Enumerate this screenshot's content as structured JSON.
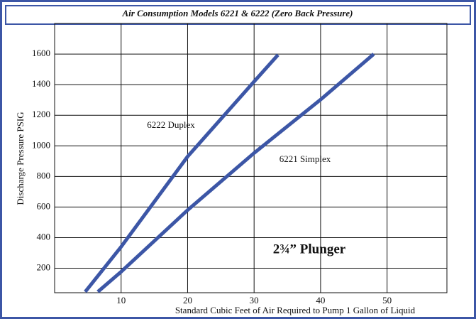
{
  "chart_data": {
    "type": "line",
    "title": "Air Consumption Models 6221 & 6222 (Zero Back Pressure)",
    "x_label": "Standard Cubic Feet of Air Required to Pump 1 Gallon of Liquid",
    "y_label": "Discharge Pressure PSIG",
    "annotations": [
      "2¾” Plunger"
    ],
    "xlim": [
      0,
      59
    ],
    "xticks": [
      10,
      20,
      30,
      40,
      50
    ],
    "ylim": [
      40,
      1800
    ],
    "yticks": [
      200,
      400,
      600,
      800,
      1000,
      1200,
      1400,
      1600
    ],
    "grid": true,
    "series": [
      {
        "name": "6222 Duplex",
        "color": "#3c56a6",
        "x": [
          4.6,
          10,
          20,
          30,
          33.6
        ],
        "values": [
          46,
          340,
          930,
          1420,
          1595
        ]
      },
      {
        "name": "6221 Simplex",
        "color": "#3c56a6",
        "x": [
          6.5,
          10,
          20,
          30,
          40,
          48
        ],
        "values": [
          46,
          177,
          580,
          953,
          1302,
          1600
        ]
      }
    ]
  }
}
